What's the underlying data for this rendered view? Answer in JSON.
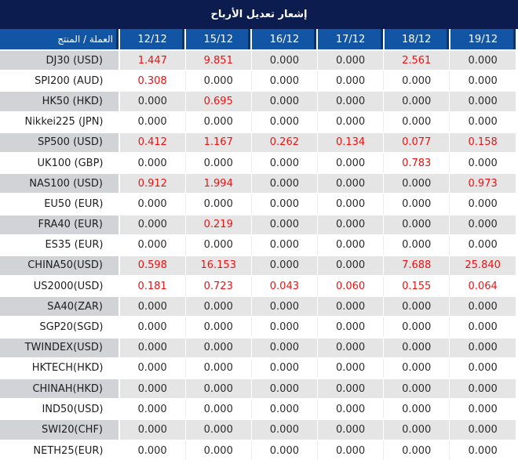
{
  "title_bar": {
    "title": "إشعار تعديل الأرباح"
  },
  "colors": {
    "title_bg": "#0d1c4e",
    "header_bg": "#1155a4",
    "label_gray": "#d2d3d7",
    "cell_gray": "#e5e5e6",
    "num_red": "#ee1111",
    "num_black": "#2b2b2b"
  },
  "table": {
    "corner_header": "العملة / المنتج",
    "date_headers": [
      "12/12",
      "15/12",
      "16/12",
      "17/12",
      "18/12",
      "19/12"
    ],
    "zero_value": "0.000",
    "rows": [
      {
        "label": "DJ30 (USD)",
        "values": [
          "1.447",
          "9.851",
          "0.000",
          "0.000",
          "2.561",
          "0.000"
        ]
      },
      {
        "label": "SPI200 (AUD)",
        "values": [
          "0.308",
          "0.000",
          "0.000",
          "0.000",
          "0.000",
          "0.000"
        ]
      },
      {
        "label": "HK50 (HKD)",
        "values": [
          "0.000",
          "0.695",
          "0.000",
          "0.000",
          "0.000",
          "0.000"
        ]
      },
      {
        "label": "Nikkei225 (JPN)",
        "values": [
          "0.000",
          "0.000",
          "0.000",
          "0.000",
          "0.000",
          "0.000"
        ]
      },
      {
        "label": "SP500 (USD)",
        "values": [
          "0.412",
          "1.167",
          "0.262",
          "0.134",
          "0.077",
          "0.158"
        ]
      },
      {
        "label": "UK100 (GBP)",
        "values": [
          "0.000",
          "0.000",
          "0.000",
          "0.000",
          "0.783",
          "0.000"
        ]
      },
      {
        "label": "NAS100 (USD)",
        "values": [
          "0.912",
          "1.994",
          "0.000",
          "0.000",
          "0.000",
          "0.973"
        ]
      },
      {
        "label": "EU50 (EUR)",
        "values": [
          "0.000",
          "0.000",
          "0.000",
          "0.000",
          "0.000",
          "0.000"
        ]
      },
      {
        "label": "FRA40 (EUR)",
        "values": [
          "0.000",
          "0.219",
          "0.000",
          "0.000",
          "0.000",
          "0.000"
        ]
      },
      {
        "label": "ES35 (EUR)",
        "values": [
          "0.000",
          "0.000",
          "0.000",
          "0.000",
          "0.000",
          "0.000"
        ]
      },
      {
        "label": "CHINA50(USD)",
        "values": [
          "0.598",
          "16.153",
          "0.000",
          "0.000",
          "7.688",
          "25.840"
        ]
      },
      {
        "label": "US2000(USD)",
        "values": [
          "0.181",
          "0.723",
          "0.043",
          "0.060",
          "0.155",
          "0.064"
        ]
      },
      {
        "label": "SA40(ZAR)",
        "values": [
          "0.000",
          "0.000",
          "0.000",
          "0.000",
          "0.000",
          "0.000"
        ]
      },
      {
        "label": "SGP20(SGD)",
        "values": [
          "0.000",
          "0.000",
          "0.000",
          "0.000",
          "0.000",
          "0.000"
        ]
      },
      {
        "label": "TWINDEX(USD)",
        "values": [
          "0.000",
          "0.000",
          "0.000",
          "0.000",
          "0.000",
          "0.000"
        ]
      },
      {
        "label": "HKTECH(HKD)",
        "values": [
          "0.000",
          "0.000",
          "0.000",
          "0.000",
          "0.000",
          "0.000"
        ]
      },
      {
        "label": "CHINAH(HKD)",
        "values": [
          "0.000",
          "0.000",
          "0.000",
          "0.000",
          "0.000",
          "0.000"
        ]
      },
      {
        "label": "IND50(USD)",
        "values": [
          "0.000",
          "0.000",
          "0.000",
          "0.000",
          "0.000",
          "0.000"
        ]
      },
      {
        "label": "SWI20(CHF)",
        "values": [
          "0.000",
          "0.000",
          "0.000",
          "0.000",
          "0.000",
          "0.000"
        ]
      },
      {
        "label": "NETH25(EUR)",
        "values": [
          "0.000",
          "0.000",
          "0.000",
          "0.000",
          "0.000",
          "0.000"
        ]
      }
    ]
  }
}
